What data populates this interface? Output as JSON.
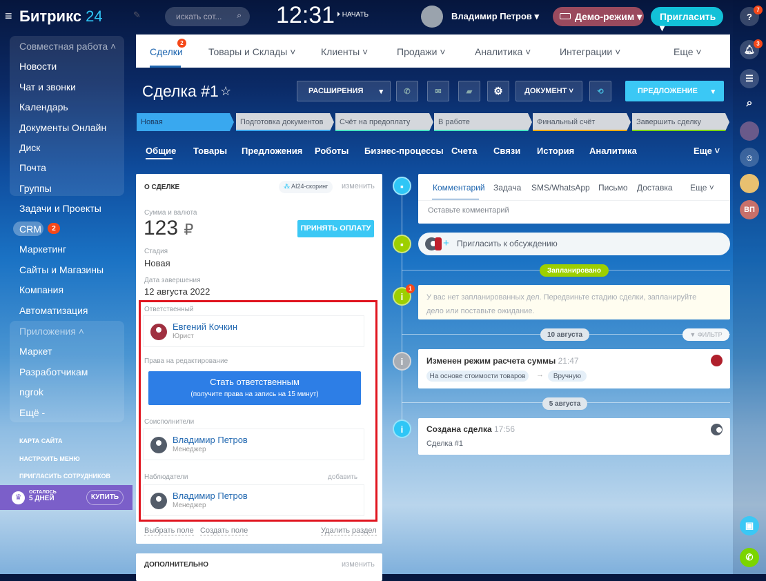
{
  "header": {
    "logo_main": "Битрикс",
    "logo_num": "24",
    "search_placeholder": "искать сот...",
    "time": "12:31",
    "start": "НАЧАТЬ",
    "user": "Владимир Петров",
    "demo": "Демо-режим",
    "invite": "Пригласить"
  },
  "sidebar": {
    "group1": "Совместная работа",
    "items1": [
      "Новости",
      "Чат и звонки",
      "Календарь",
      "Документы Онлайн",
      "Диск",
      "Почта",
      "Группы"
    ],
    "items2": [
      "Задачи и Проекты",
      "CRM",
      "Маркетинг",
      "Сайты и Магазины",
      "Компания",
      "Автоматизация"
    ],
    "crm_badge": "2",
    "group2": "Приложения",
    "items3": [
      "Маркет",
      "Разработчикам",
      "ngrok",
      "Ещё -"
    ],
    "links": [
      "КАРТА САЙТА",
      "НАСТРОИТЬ МЕНЮ",
      "ПРИГЛАСИТЬ СОТРУДНИКОВ"
    ],
    "trial_line1": "ОСТАЛОСЬ",
    "trial_line2": "5 ДНЕЙ",
    "buy": "КУПИТЬ"
  },
  "topnav": {
    "items": [
      "Сделки",
      "Товары и Склады",
      "Клиенты",
      "Продажи",
      "Аналитика",
      "Интеграции",
      "Еще"
    ],
    "deals_badge": "2"
  },
  "deal": {
    "title": "Сделка #1",
    "extensions": "РАСШИРЕНИЯ",
    "document": "ДОКУМЕНТ",
    "proposal": "ПРЕДЛОЖЕНИЕ"
  },
  "stages": [
    {
      "label": "Новая",
      "color": "#39a8ef"
    },
    {
      "label": "Подготовка документов",
      "color": "#39a8ef"
    },
    {
      "label": "Счёт на предоплату",
      "color": "#47e4c2"
    },
    {
      "label": "В работе",
      "color": "#47e4c2"
    },
    {
      "label": "Финальный счёт",
      "color": "#ffa900"
    },
    {
      "label": "Завершить сделку",
      "color": "#7bd500"
    }
  ],
  "tabs": [
    "Общие",
    "Товары",
    "Предложения",
    "Роботы",
    "Бизнес-процессы",
    "Счета",
    "Связи",
    "История",
    "Аналитика",
    "Еще"
  ],
  "about": {
    "title": "О СДЕЛКЕ",
    "scoring": "AI24-скоринг",
    "edit": "изменить",
    "sum_label": "Сумма и валюта",
    "sum": "123",
    "currency": "₽",
    "pay": "ПРИНЯТЬ ОПЛАТУ",
    "stage_label": "Стадия",
    "stage": "Новая",
    "close_label": "Дата завершения",
    "close": "12 августа 2022",
    "responsible_label": "Ответственный",
    "responsible": {
      "name": "Евгений Кочкин",
      "role": "Юрист"
    },
    "rights_label": "Права на редактирование",
    "become": "Стать ответственным",
    "become_sub": "(получите права на запись на 15 минут)",
    "co_label": "Соисполнители",
    "co": {
      "name": "Владимир Петров",
      "role": "Менеджер"
    },
    "obs_label": "Наблюдатели",
    "add": "добавить",
    "obs": {
      "name": "Владимир Петров",
      "role": "Менеджер"
    },
    "choose": "Выбрать поле",
    "create": "Создать поле",
    "delete": "Удалить раздел"
  },
  "extra": {
    "title": "ДОПОЛНИТЕЛЬНО",
    "edit": "изменить"
  },
  "timeline": {
    "tabs": [
      "Комментарий",
      "Задача",
      "SMS/WhatsApp",
      "Письмо",
      "Доставка",
      "Еще"
    ],
    "comment_placeholder": "Оставьте комментарий",
    "invite": "Пригласить к обсуждению",
    "planned": "Запланировано",
    "empty": "У вас нет запланированных дел. Передвиньте стадию сделки, запланируйте дело или поставьте ожидание.",
    "empty_badge": "1",
    "date1": "10 августа",
    "filter": "ФИЛЬТР",
    "ev1_title": "Изменен режим расчета суммы",
    "ev1_time": "21:47",
    "ev1_from": "На основе стоимости товаров",
    "ev1_to": "Вручную",
    "date2": "5 августа",
    "ev2_title": "Создана сделка",
    "ev2_time": "17:56",
    "ev2_text": "Сделка #1"
  },
  "rail": {
    "help_badge": "7",
    "notif_badge": "3",
    "initials": "ВП"
  }
}
